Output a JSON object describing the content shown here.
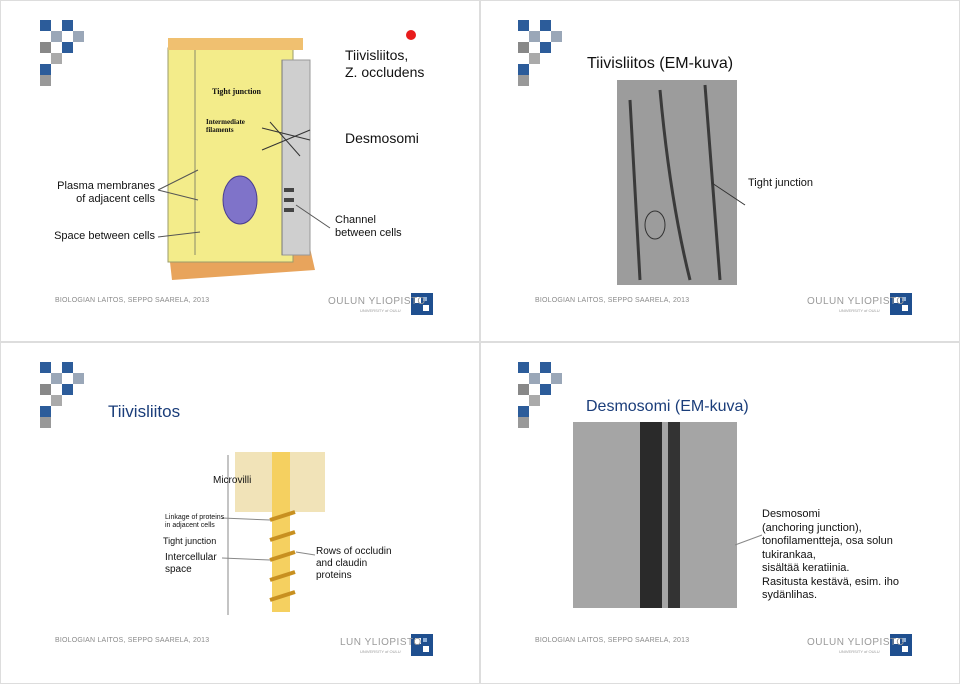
{
  "slides": [
    {
      "title": [
        "Tiivisliitos,",
        "Z. occludens"
      ],
      "subtitle": "Desmosomi",
      "labels": {
        "plasma_membranes": [
          "Plasma membranes",
          "of adjacent cells"
        ],
        "space_between": "Space between cells",
        "channel": [
          "Channel",
          "between cells"
        ],
        "figure_tight_junction": "Tight junction",
        "figure_filaments": [
          "Intermediate",
          "filaments"
        ]
      },
      "footer": "BIOLOGIAN LAITOS, SEPPO SAARELA, 2013",
      "logo": {
        "name": "OULUN YLIOPISTO",
        "sub": "UNIVERSITY of OULU"
      }
    },
    {
      "title": "Tiivisliitos (EM-kuva)",
      "labels": {
        "tight_junction": "Tight junction"
      },
      "footer": "BIOLOGIAN LAITOS, SEPPO SAARELA, 2013",
      "logo": {
        "name": "OULUN YLIOPISTO",
        "sub": "UNIVERSITY of OULU"
      }
    },
    {
      "title": "Tiivisliitos",
      "labels": {
        "microvilli": "Microvilli",
        "linkage": [
          "Linkage of proteins",
          "in adjacent cells"
        ],
        "tight_junction": "Tight junction",
        "intercellular": [
          "Intercellular",
          "space"
        ],
        "rows": [
          "Rows of occludin",
          "and claudin",
          "proteins"
        ]
      },
      "footer": "BIOLOGIAN LAITOS, SEPPO SAARELA, 2013",
      "logo": {
        "name": "LUN YLIOPISTO",
        "sub": "UNIVERSITY of OULU"
      }
    },
    {
      "title": "Desmosomi (EM-kuva)",
      "text": [
        "Desmosomi",
        "(anchoring junction),",
        "tonofilamentteja, osa solun",
        "tukirankaa,",
        "sisältää keratiinia.",
        "Rasitusta kestävä, esim. iho",
        "sydänlihas."
      ],
      "footer": "BIOLOGIAN LAITOS, SEPPO SAARELA, 2013",
      "logo": {
        "name": "OULUN YLIOPISTO",
        "sub": "UNIVERSITY of OULU"
      }
    }
  ]
}
